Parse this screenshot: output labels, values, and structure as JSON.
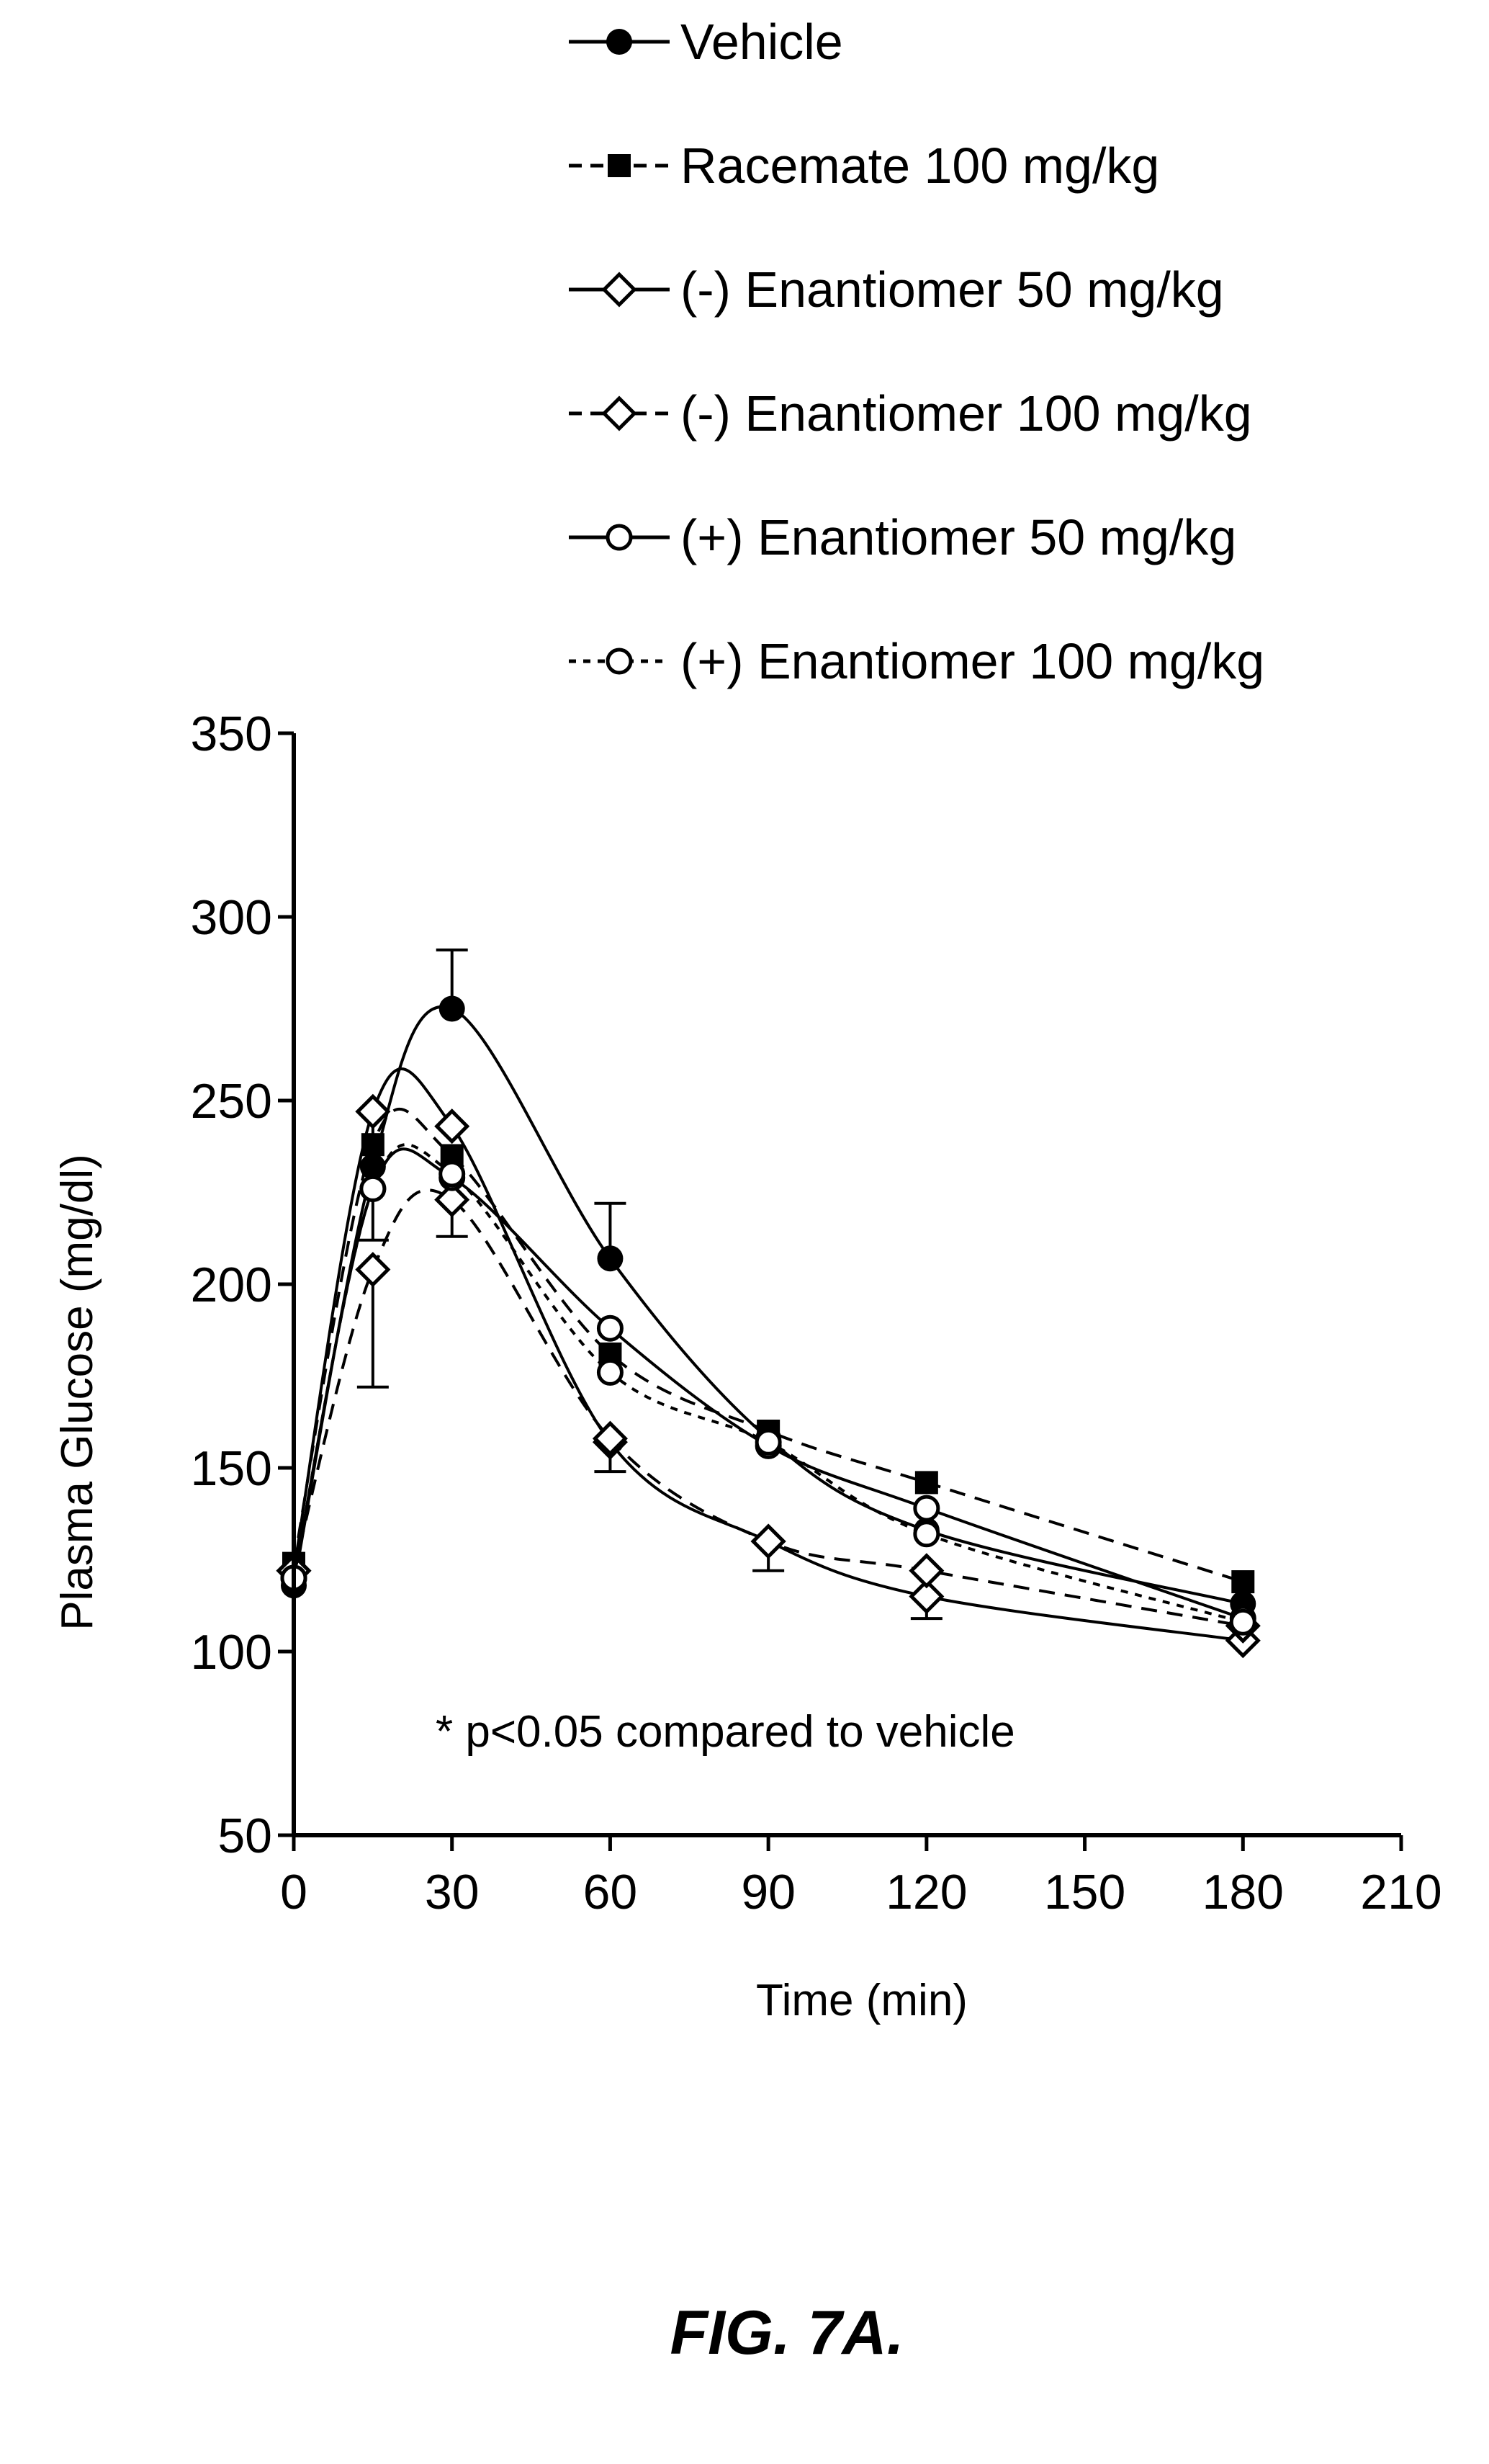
{
  "chart_data": {
    "type": "line",
    "xlabel": "Time (min)",
    "ylabel": "Plasma Glucose (mg/dl)",
    "xlim": [
      0,
      210
    ],
    "ylim": [
      50,
      350
    ],
    "xticks": [
      "0",
      "30",
      "60",
      "90",
      "120",
      "150",
      "180",
      "210"
    ],
    "yticks": [
      "50",
      "100",
      "150",
      "200",
      "250",
      "300",
      "350"
    ],
    "legend_position": "top",
    "grid": false,
    "annotation": "* p<0.05 compared to vehicle",
    "x": [
      0,
      15,
      30,
      60,
      90,
      120,
      180
    ],
    "series": [
      {
        "name": "Vehicle",
        "marker": "filled-circle",
        "line": "solid",
        "values": [
          118,
          232,
          275,
          207,
          158,
          133,
          113
        ],
        "error_plus": [
          0,
          0,
          16,
          15,
          0,
          0,
          0
        ]
      },
      {
        "name": "Racemate 100 mg/kg",
        "marker": "filled-square",
        "line": "dashed",
        "values": [
          124,
          238,
          235,
          181,
          160,
          146,
          119
        ],
        "error_plus": [
          0,
          0,
          0,
          0,
          0,
          0,
          0
        ]
      },
      {
        "name": "(-) Enantiomer 50 mg/kg",
        "marker": "open-diamond",
        "line": "solid",
        "values": [
          122,
          247,
          243,
          157,
          130,
          115,
          103
        ],
        "error_minus": [
          0,
          35,
          0,
          8,
          8,
          6,
          0
        ]
      },
      {
        "name": "(-) Enantiomer 100 mg/kg",
        "marker": "open-diamond",
        "line": "dashed",
        "values": [
          122,
          204,
          223,
          158,
          130,
          122,
          107
        ],
        "error_minus": [
          0,
          32,
          10,
          0,
          0,
          0,
          0
        ]
      },
      {
        "name": "(+) Enantiomer 50 mg/kg",
        "marker": "open-circle",
        "line": "solid",
        "values": [
          120,
          226,
          229,
          188,
          156,
          139,
          109
        ],
        "error_minus": [
          0,
          0,
          0,
          0,
          0,
          0,
          0
        ]
      },
      {
        "name": "(+) Enantiomer 100 mg/kg",
        "marker": "open-circle",
        "line": "dotted",
        "values": [
          120,
          226,
          230,
          176,
          157,
          132,
          108
        ],
        "error_minus": [
          0,
          0,
          0,
          0,
          0,
          0,
          0
        ]
      }
    ]
  },
  "caption": "FIG. 7A."
}
